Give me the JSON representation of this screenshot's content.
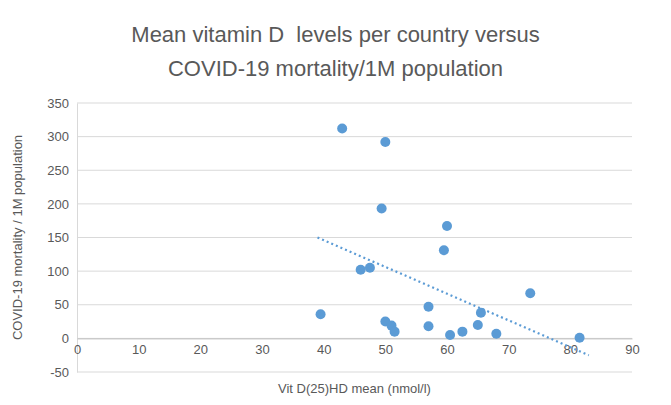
{
  "chart_data": {
    "type": "scatter",
    "title": [
      "Mean vitamin D  levels per country versus",
      "COVID-19 mortality/1M population"
    ],
    "x_label": "Vit D(25)HD mean (nmol/l)",
    "y_label": "COVID-19 mortality / 1M population",
    "series": [
      {
        "type": "scatter",
        "marker": "circle",
        "color": "#5b9bd5",
        "x": [
          39.5,
          43,
          50,
          49.4,
          46,
          47.5,
          50,
          51,
          51.5,
          57,
          57,
          60,
          59.5,
          60.5,
          62.5,
          65.5,
          65,
          68,
          73.5,
          81.5
        ],
        "values": [
          36,
          312,
          292,
          193,
          102,
          105,
          25,
          19,
          10,
          47,
          18,
          167,
          131,
          5,
          10,
          38,
          20,
          7,
          67,
          1
        ]
      },
      {
        "type": "line",
        "line_style": "dotted",
        "color": "#5b9bd5",
        "x": [
          39,
          83
        ],
        "values": [
          150,
          -25
        ]
      }
    ],
    "xlim": [
      0,
      90
    ],
    "xticks": [
      0,
      10,
      20,
      30,
      40,
      50,
      60,
      70,
      80,
      90
    ],
    "ylim": [
      -50,
      350
    ],
    "yticks": [
      -50,
      0,
      50,
      100,
      150,
      200,
      250,
      300,
      350
    ],
    "grid": true
  }
}
